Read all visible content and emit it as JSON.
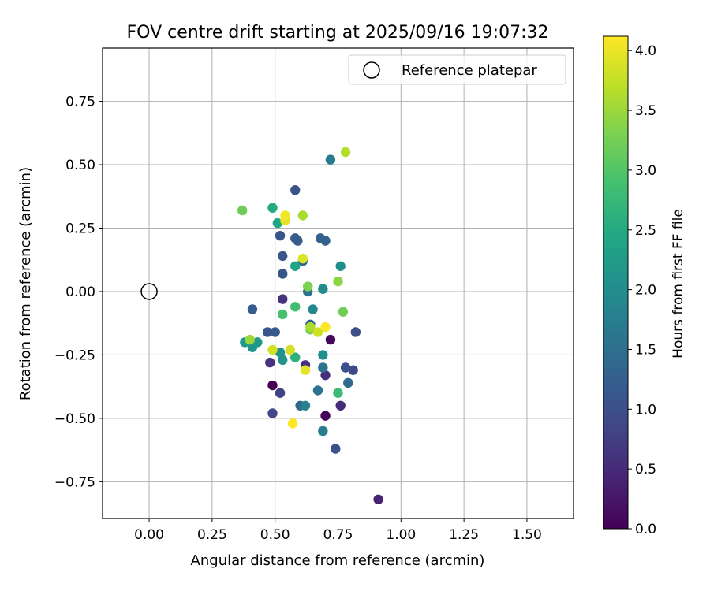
{
  "chart_data": {
    "type": "scatter",
    "title": "FOV centre drift starting at 2025/09/16 19:07:32",
    "xlabel": "Angular distance from reference (arcmin)",
    "ylabel": "Rotation from reference (arcmin)",
    "xlim": [
      -0.185,
      1.685
    ],
    "ylim": [
      -0.895,
      0.96
    ],
    "xticks": [
      0.0,
      0.25,
      0.5,
      0.75,
      1.0,
      1.25,
      1.5
    ],
    "xtick_labels": [
      "0.00",
      "0.25",
      "0.50",
      "0.75",
      "1.00",
      "1.25",
      "1.50"
    ],
    "yticks": [
      -0.75,
      -0.5,
      -0.25,
      0.0,
      0.25,
      0.5,
      0.75
    ],
    "ytick_labels": [
      "−0.75",
      "−0.50",
      "−0.25",
      "0.00",
      "0.25",
      "0.50",
      "0.75"
    ],
    "grid": true,
    "legend": {
      "position": "upper right",
      "entries": [
        "Reference platepar"
      ]
    },
    "reference_point": {
      "x": 0.0,
      "y": 0.0
    },
    "colorbar": {
      "label": "Hours from first FF file",
      "colormap": "viridis",
      "range": [
        0.0,
        4.12
      ],
      "ticks": [
        0.0,
        0.5,
        1.0,
        1.5,
        2.0,
        2.5,
        3.0,
        3.5,
        4.0
      ],
      "tick_labels": [
        "0.0",
        "0.5",
        "1.0",
        "1.5",
        "2.0",
        "2.5",
        "3.0",
        "3.5",
        "4.0"
      ]
    },
    "points": [
      {
        "x": 0.49,
        "y": -0.37,
        "hours": 0.0
      },
      {
        "x": 0.7,
        "y": -0.49,
        "hours": 0.05
      },
      {
        "x": 0.72,
        "y": -0.19,
        "hours": 0.1
      },
      {
        "x": 0.91,
        "y": -0.82,
        "hours": 0.4
      },
      {
        "x": 0.76,
        "y": -0.45,
        "hours": 0.5
      },
      {
        "x": 0.7,
        "y": -0.33,
        "hours": 0.55
      },
      {
        "x": 0.53,
        "y": -0.03,
        "hours": 0.6
      },
      {
        "x": 0.48,
        "y": -0.28,
        "hours": 0.6
      },
      {
        "x": 0.62,
        "y": -0.29,
        "hours": 0.6
      },
      {
        "x": 0.52,
        "y": -0.4,
        "hours": 0.8
      },
      {
        "x": 0.49,
        "y": -0.48,
        "hours": 0.85
      },
      {
        "x": 0.81,
        "y": -0.31,
        "hours": 0.9
      },
      {
        "x": 0.74,
        "y": -0.62,
        "hours": 1.0
      },
      {
        "x": 0.82,
        "y": -0.16,
        "hours": 1.0
      },
      {
        "x": 0.78,
        "y": -0.3,
        "hours": 1.0
      },
      {
        "x": 0.47,
        "y": -0.16,
        "hours": 1.1
      },
      {
        "x": 0.5,
        "y": -0.16,
        "hours": 1.15
      },
      {
        "x": 0.41,
        "y": -0.07,
        "hours": 1.2
      },
      {
        "x": 0.58,
        "y": 0.4,
        "hours": 1.05
      },
      {
        "x": 0.52,
        "y": 0.22,
        "hours": 1.1
      },
      {
        "x": 0.53,
        "y": 0.14,
        "hours": 1.1
      },
      {
        "x": 0.53,
        "y": 0.07,
        "hours": 1.1
      },
      {
        "x": 0.59,
        "y": 0.2,
        "hours": 1.2
      },
      {
        "x": 0.58,
        "y": 0.21,
        "hours": 1.2
      },
      {
        "x": 0.68,
        "y": 0.21,
        "hours": 1.3
      },
      {
        "x": 0.7,
        "y": 0.2,
        "hours": 1.3
      },
      {
        "x": 0.61,
        "y": 0.12,
        "hours": 1.35
      },
      {
        "x": 0.64,
        "y": -0.13,
        "hours": 1.2
      },
      {
        "x": 0.79,
        "y": -0.36,
        "hours": 1.4
      },
      {
        "x": 0.6,
        "y": -0.45,
        "hours": 1.4
      },
      {
        "x": 0.67,
        "y": -0.39,
        "hours": 1.55
      },
      {
        "x": 0.69,
        "y": -0.3,
        "hours": 1.6
      },
      {
        "x": 0.63,
        "y": 0.0,
        "hours": 1.55
      },
      {
        "x": 0.72,
        "y": 0.52,
        "hours": 1.7
      },
      {
        "x": 0.69,
        "y": -0.55,
        "hours": 1.75
      },
      {
        "x": 0.62,
        "y": -0.45,
        "hours": 1.8
      },
      {
        "x": 0.65,
        "y": -0.07,
        "hours": 1.9
      },
      {
        "x": 0.69,
        "y": 0.01,
        "hours": 1.95
      },
      {
        "x": 0.76,
        "y": 0.1,
        "hours": 2.05
      },
      {
        "x": 0.69,
        "y": -0.25,
        "hours": 2.05
      },
      {
        "x": 0.52,
        "y": -0.24,
        "hours": 2.1
      },
      {
        "x": 0.53,
        "y": -0.27,
        "hours": 2.1
      },
      {
        "x": 0.41,
        "y": -0.22,
        "hours": 2.15
      },
      {
        "x": 0.43,
        "y": -0.2,
        "hours": 2.2
      },
      {
        "x": 0.38,
        "y": -0.2,
        "hours": 2.2
      },
      {
        "x": 0.58,
        "y": 0.1,
        "hours": 2.4
      },
      {
        "x": 0.51,
        "y": 0.27,
        "hours": 2.45
      },
      {
        "x": 0.49,
        "y": 0.33,
        "hours": 2.5
      },
      {
        "x": 0.58,
        "y": -0.26,
        "hours": 2.6
      },
      {
        "x": 0.75,
        "y": -0.4,
        "hours": 2.8
      },
      {
        "x": 0.58,
        "y": -0.06,
        "hours": 2.85
      },
      {
        "x": 0.53,
        "y": -0.09,
        "hours": 2.9
      },
      {
        "x": 0.64,
        "y": -0.15,
        "hours": 3.2
      },
      {
        "x": 0.37,
        "y": 0.32,
        "hours": 3.2
      },
      {
        "x": 0.77,
        "y": -0.08,
        "hours": 3.2
      },
      {
        "x": 0.63,
        "y": 0.02,
        "hours": 3.3
      },
      {
        "x": 0.75,
        "y": 0.04,
        "hours": 3.4
      },
      {
        "x": 0.4,
        "y": -0.19,
        "hours": 3.5
      },
      {
        "x": 0.64,
        "y": -0.14,
        "hours": 3.6
      },
      {
        "x": 0.61,
        "y": 0.3,
        "hours": 3.6
      },
      {
        "x": 0.78,
        "y": 0.55,
        "hours": 3.65
      },
      {
        "x": 0.67,
        "y": -0.16,
        "hours": 3.8
      },
      {
        "x": 0.49,
        "y": -0.23,
        "hours": 3.85
      },
      {
        "x": 0.56,
        "y": -0.23,
        "hours": 3.85
      },
      {
        "x": 0.61,
        "y": 0.13,
        "hours": 3.9
      },
      {
        "x": 0.62,
        "y": -0.31,
        "hours": 3.95
      },
      {
        "x": 0.54,
        "y": 0.28,
        "hours": 3.95
      },
      {
        "x": 0.54,
        "y": 0.3,
        "hours": 4.05
      },
      {
        "x": 0.7,
        "y": -0.14,
        "hours": 4.1
      },
      {
        "x": 0.57,
        "y": -0.52,
        "hours": 4.12
      }
    ]
  }
}
